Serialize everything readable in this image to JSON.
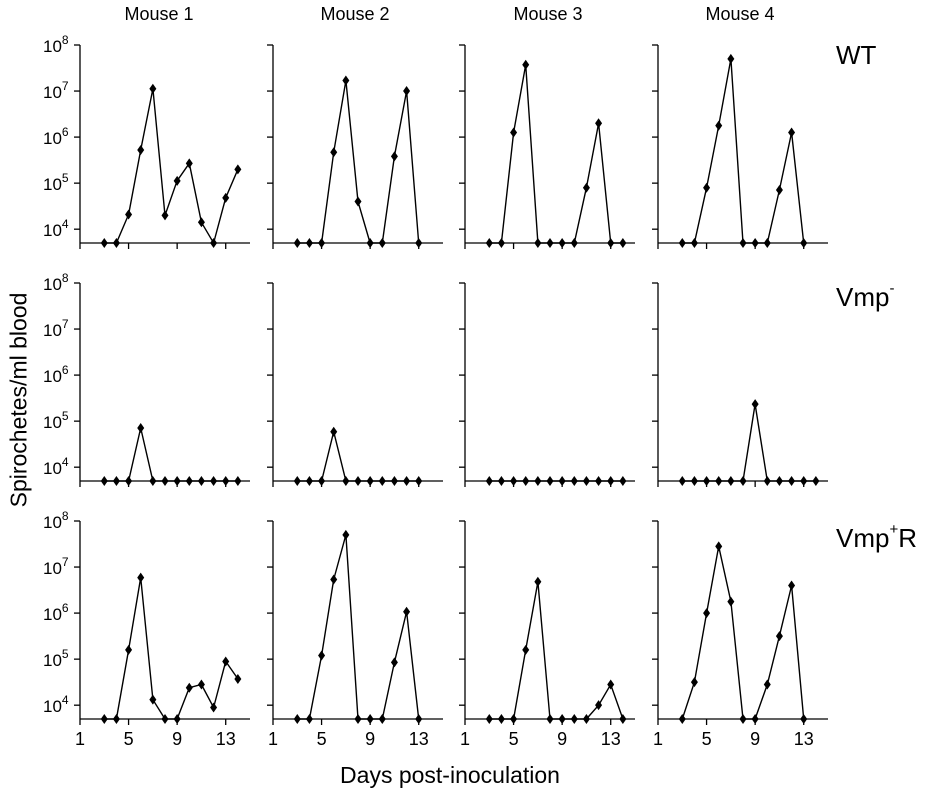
{
  "figure": {
    "column_headers": [
      "Mouse 1",
      "Mouse 2",
      "Mouse 3",
      "Mouse 4"
    ],
    "row_labels": {
      "wt": "WT",
      "vmp_minus_base": "Vmp",
      "vmp_minus_sup": "-",
      "vmp_plus_r_base": "Vmp",
      "vmp_plus_r_sup": "+",
      "vmp_plus_r_tail": "R"
    },
    "ylabel": "Spirochetes/ml blood",
    "xlabel": "Days post-inoculation",
    "x_tick_labels": [
      "1",
      "5",
      "9",
      "13"
    ],
    "y_tick_base": "10",
    "y_tick_exponents": [
      "4",
      "5",
      "6",
      "7",
      "8"
    ]
  },
  "chart_data": {
    "type": "line",
    "x_axis": {
      "range": [
        1,
        15
      ],
      "ticks": [
        1,
        5,
        9,
        13
      ]
    },
    "y_axis": {
      "scale": "log10",
      "range": [
        3.7,
        8
      ],
      "ticks_log10": [
        4,
        5,
        6,
        7,
        8
      ]
    },
    "x": [
      3,
      4,
      5,
      6,
      7,
      8,
      9,
      10,
      11,
      12,
      13,
      14
    ],
    "values_note": "log10(spirochetes/ml blood)",
    "panels": [
      {
        "row": "WT",
        "column": "Mouse 1",
        "y_log10": [
          3.7,
          3.7,
          4.32,
          5.72,
          7.05,
          4.3,
          5.05,
          5.43,
          4.15,
          3.7,
          4.68,
          5.3
        ]
      },
      {
        "row": "WT",
        "column": "Mouse 2",
        "y_log10": [
          3.7,
          3.7,
          3.7,
          5.67,
          7.23,
          4.6,
          3.7,
          3.7,
          5.58,
          7.0,
          3.7,
          null
        ]
      },
      {
        "row": "WT",
        "column": "Mouse 3",
        "y_log10": [
          3.7,
          3.7,
          6.1,
          7.57,
          3.7,
          3.7,
          3.7,
          3.7,
          4.9,
          6.3,
          3.7,
          3.7
        ]
      },
      {
        "row": "WT",
        "column": "Mouse 4",
        "y_log10": [
          3.7,
          3.7,
          4.9,
          6.25,
          7.7,
          3.7,
          3.7,
          3.7,
          4.85,
          6.1,
          3.7,
          null
        ]
      },
      {
        "row": "Vmp-",
        "column": "Mouse 1",
        "y_log10": [
          3.7,
          3.7,
          3.7,
          4.85,
          3.7,
          3.7,
          3.7,
          3.7,
          3.7,
          3.7,
          3.7,
          3.7
        ]
      },
      {
        "row": "Vmp-",
        "column": "Mouse 2",
        "y_log10": [
          3.7,
          3.7,
          3.7,
          4.77,
          3.7,
          3.7,
          3.7,
          3.7,
          3.7,
          3.7,
          3.7,
          null
        ]
      },
      {
        "row": "Vmp-",
        "column": "Mouse 3",
        "y_log10": [
          3.7,
          3.7,
          3.7,
          3.7,
          3.7,
          3.7,
          3.7,
          3.7,
          3.7,
          3.7,
          3.7,
          3.7
        ]
      },
      {
        "row": "Vmp-",
        "column": "Mouse 4",
        "y_log10": [
          3.7,
          3.7,
          3.7,
          3.7,
          3.7,
          3.7,
          5.37,
          3.7,
          3.7,
          3.7,
          3.7,
          3.7
        ]
      },
      {
        "row": "Vmp+R",
        "column": "Mouse 1",
        "y_log10": [
          3.7,
          3.7,
          5.2,
          6.77,
          4.12,
          3.7,
          3.7,
          4.38,
          4.45,
          3.95,
          4.95,
          4.57
        ]
      },
      {
        "row": "Vmp+R",
        "column": "Mouse 2",
        "y_log10": [
          3.7,
          3.7,
          5.08,
          6.73,
          7.7,
          3.7,
          3.7,
          3.7,
          4.93,
          6.03,
          3.7,
          null
        ]
      },
      {
        "row": "Vmp+R",
        "column": "Mouse 3",
        "y_log10": [
          3.7,
          3.7,
          3.7,
          5.2,
          6.68,
          3.7,
          3.7,
          3.7,
          3.7,
          4.0,
          4.45,
          3.7
        ]
      },
      {
        "row": "Vmp+R",
        "column": "Mouse 4",
        "y_log10": [
          3.7,
          4.5,
          6.0,
          7.45,
          6.25,
          3.7,
          3.7,
          4.45,
          5.5,
          6.6,
          3.7,
          null
        ]
      }
    ]
  }
}
